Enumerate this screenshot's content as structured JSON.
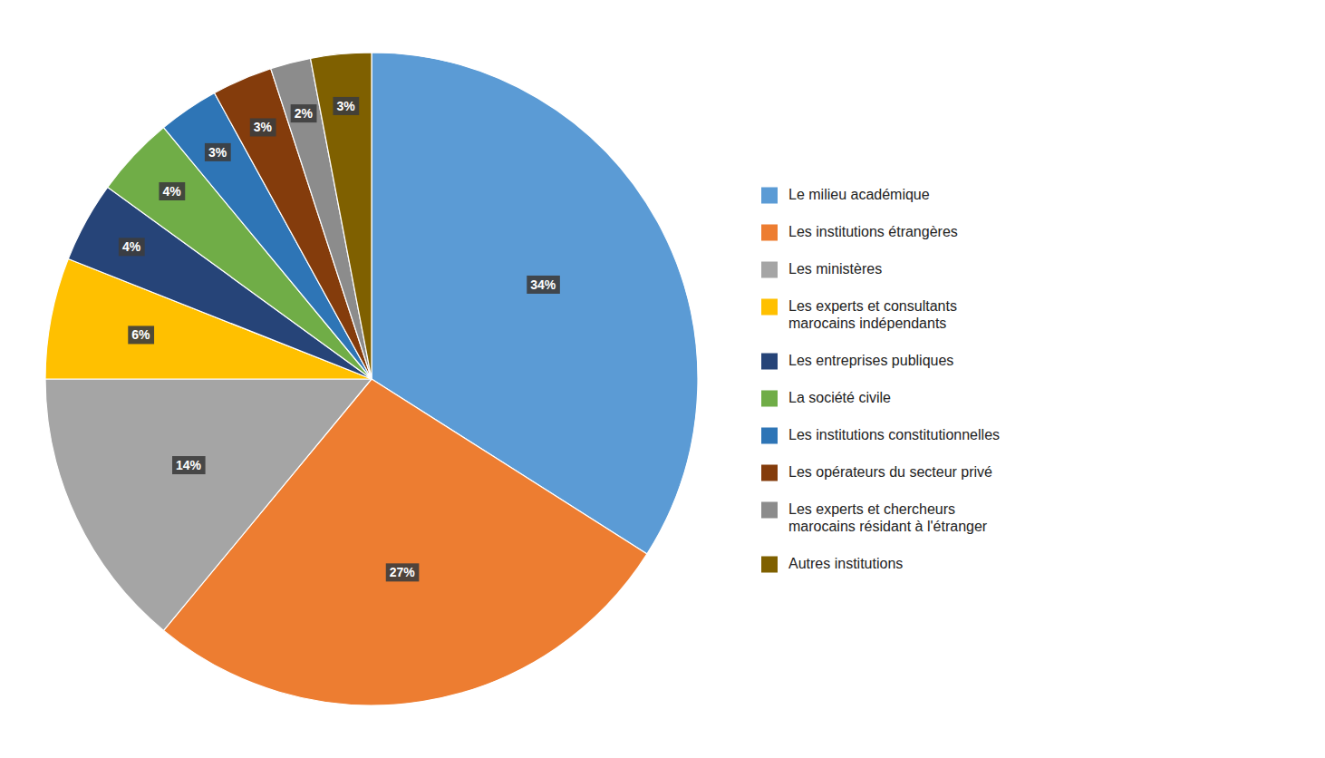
{
  "chart_data": {
    "type": "pie",
    "categories": [
      "Le milieu académique",
      "Les institutions étrangères",
      "Les ministères",
      "Les experts et consultants\nmarocains indépendants",
      "Les entreprises publiques",
      "La société civile",
      "Les institutions constitutionnelles",
      "Les opérateurs du secteur privé",
      "Les experts et chercheurs\nmarocains résidant à l'étranger",
      "Autres institutions"
    ],
    "values": [
      34,
      27,
      14,
      6,
      4,
      4,
      3,
      3,
      2,
      3
    ],
    "value_labels": [
      "34%",
      "27%",
      "14%",
      "6%",
      "4%",
      "4%",
      "3%",
      "3%",
      "2%",
      "3%"
    ],
    "colors": [
      "#5B9BD5",
      "#ED7D31",
      "#A5A5A5",
      "#FFC000",
      "#264478",
      "#70AD47",
      "#2E75B6",
      "#843C0C",
      "#8C8C8C",
      "#7F6000"
    ],
    "data_labels": true,
    "legend": "right"
  }
}
